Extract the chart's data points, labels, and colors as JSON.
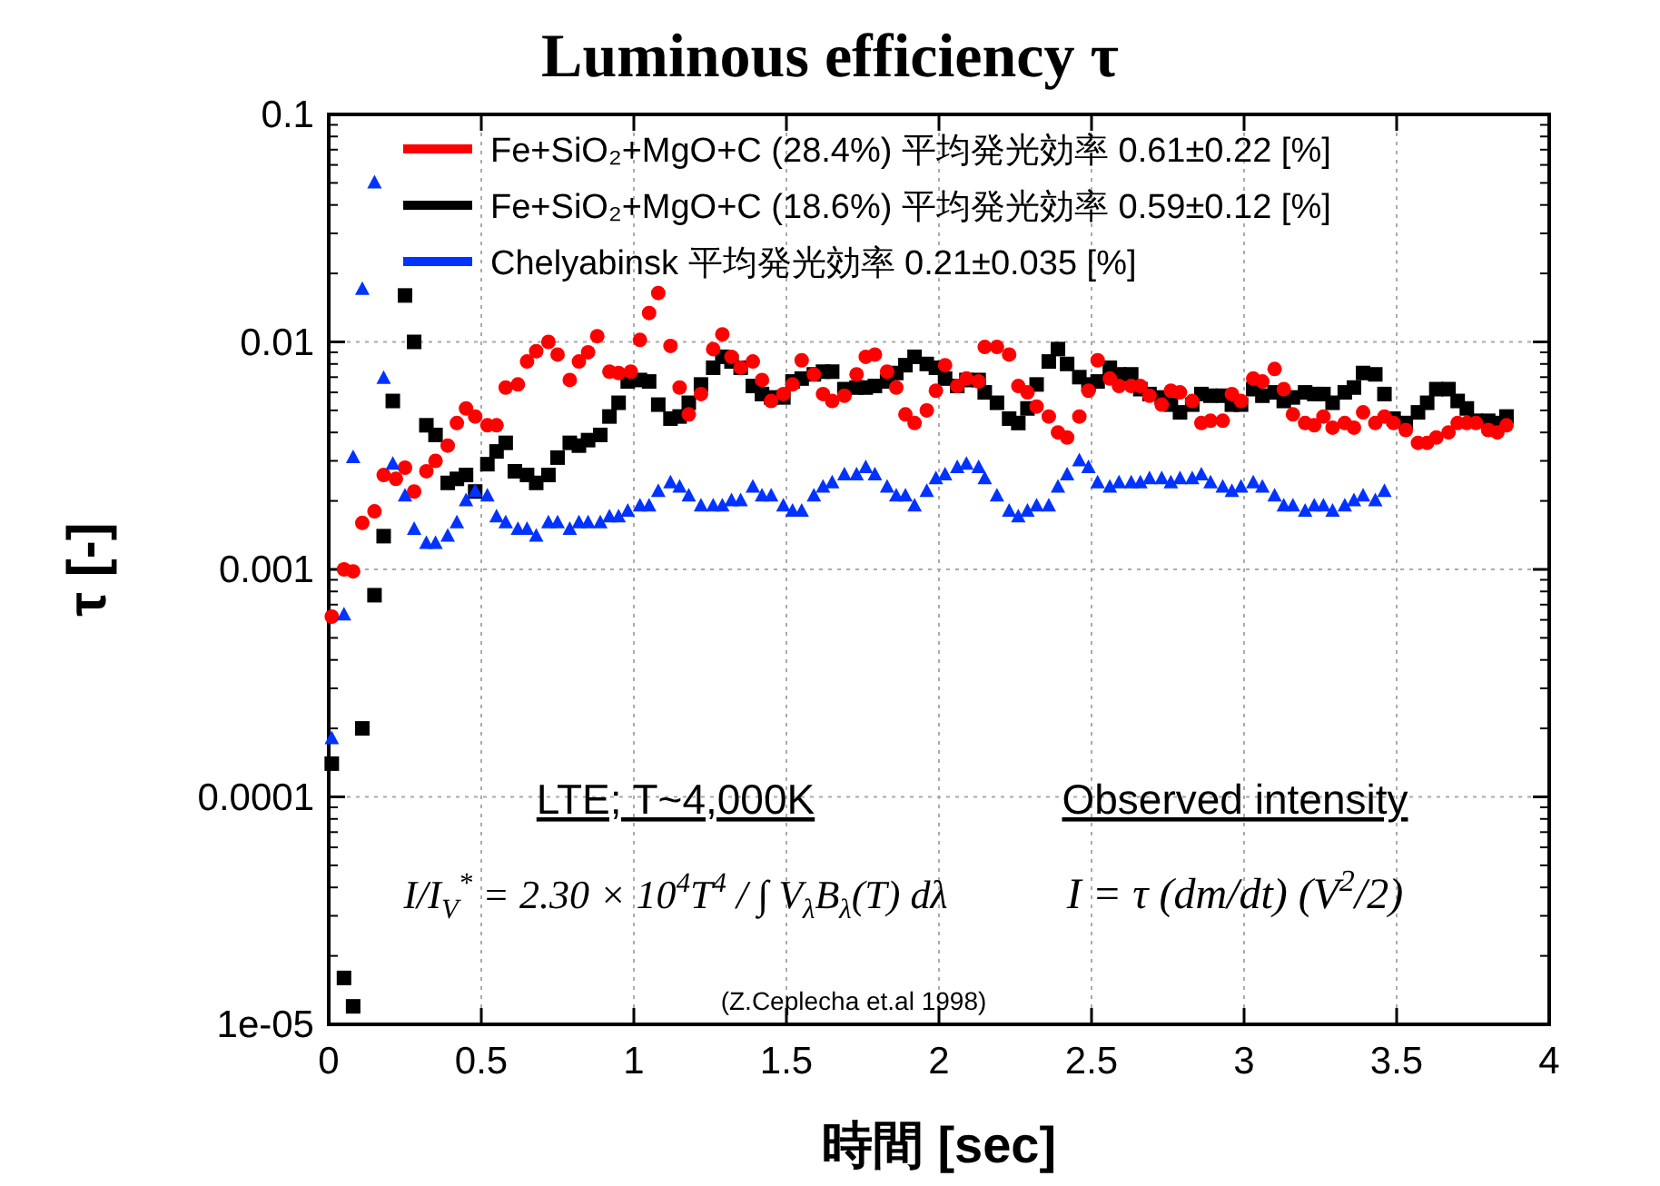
{
  "chart_data": {
    "type": "scatter",
    "title": "Luminous efficiency τ",
    "xlabel": "時間 [sec]",
    "ylabel": "τ [-]",
    "log": "y",
    "grid": true,
    "legend": "top",
    "xlim": [
      0,
      4
    ],
    "xticks": [
      0,
      0.5,
      1,
      1.5,
      2,
      2.5,
      3,
      3.5,
      4
    ],
    "ylim": [
      1e-05,
      0.1
    ],
    "yticks": [
      {
        "value": 1e-05,
        "label": "1e-05"
      },
      0.0001,
      0.001,
      0.01,
      0.1
    ],
    "annotations": [
      "LTE; T~4,000K",
      "Observed intensity",
      "I/I$_{V}$$^{*}$ = 2.30 × 10$^{4}$T$^{4}$ / ∫ V$_{λ}$B$_{λ}$(T) dλ",
      "I = τ (dm/dt) (V$^{2}$/2)",
      "(Z.Ceplecha et.al 1998)"
    ],
    "series": [
      {
        "name": "Fe+SiO₂+MgO+C (28.4%) 平均発光効率 0.61±0.22 [%]",
        "color": "#ff0000",
        "marker": "circle",
        "x": [
          0.01,
          0.05,
          0.08,
          0.11,
          0.15,
          0.18,
          0.22,
          0.25,
          0.28,
          0.32,
          0.35,
          0.39,
          0.42,
          0.45,
          0.48,
          0.52,
          0.55,
          0.58,
          0.62,
          0.65,
          0.68,
          0.72,
          0.75,
          0.79,
          0.82,
          0.85,
          0.88,
          0.92,
          0.95,
          0.99,
          1.02,
          1.05,
          1.08,
          1.12,
          1.15,
          1.18,
          1.22,
          1.26,
          1.29,
          1.32,
          1.35,
          1.39,
          1.42,
          1.45,
          1.49,
          1.52,
          1.55,
          1.59,
          1.62,
          1.65,
          1.69,
          1.73,
          1.76,
          1.79,
          1.83,
          1.86,
          1.89,
          1.92,
          1.96,
          1.99,
          2.02,
          2.06,
          2.09,
          2.13,
          2.15,
          2.19,
          2.23,
          2.26,
          2.29,
          2.32,
          2.36,
          2.39,
          2.42,
          2.46,
          2.49,
          2.52,
          2.56,
          2.59,
          2.63,
          2.66,
          2.69,
          2.73,
          2.76,
          2.79,
          2.83,
          2.86,
          2.89,
          2.93,
          2.96,
          2.99,
          3.03,
          3.06,
          3.1,
          3.13,
          3.16,
          3.2,
          3.23,
          3.26,
          3.29,
          3.33,
          3.36,
          3.39,
          3.43,
          3.46,
          3.49,
          3.53,
          3.57,
          3.6,
          3.63,
          3.67,
          3.7,
          3.73,
          3.76,
          3.8,
          3.83,
          3.86
        ],
        "values": [
          0.00062,
          0.001,
          0.00098,
          0.0016,
          0.0018,
          0.0026,
          0.0025,
          0.0028,
          0.0022,
          0.0027,
          0.003,
          0.0035,
          0.0044,
          0.0051,
          0.0047,
          0.0043,
          0.0043,
          0.0063,
          0.0065,
          0.0082,
          0.0091,
          0.01,
          0.0088,
          0.0068,
          0.0082,
          0.009,
          0.0106,
          0.0074,
          0.0073,
          0.0074,
          0.0102,
          0.0134,
          0.0164,
          0.0096,
          0.0063,
          0.0048,
          0.0059,
          0.0093,
          0.0108,
          0.0086,
          0.0077,
          0.0082,
          0.0068,
          0.0055,
          0.0059,
          0.0065,
          0.0083,
          0.0072,
          0.0059,
          0.0055,
          0.0058,
          0.0072,
          0.0086,
          0.0088,
          0.0074,
          0.0063,
          0.0048,
          0.0044,
          0.005,
          0.0061,
          0.0079,
          0.0064,
          0.0069,
          0.0067,
          0.0095,
          0.0095,
          0.0088,
          0.0064,
          0.006,
          0.0052,
          0.0047,
          0.004,
          0.0038,
          0.0047,
          0.0061,
          0.0083,
          0.0069,
          0.0064,
          0.0064,
          0.0064,
          0.0058,
          0.0053,
          0.0061,
          0.006,
          0.0055,
          0.0044,
          0.0045,
          0.0045,
          0.0059,
          0.0055,
          0.0069,
          0.0067,
          0.0076,
          0.0062,
          0.0048,
          0.0044,
          0.0043,
          0.0047,
          0.0042,
          0.0044,
          0.0042,
          0.0049,
          0.0044,
          0.0047,
          0.0044,
          0.0041,
          0.0036,
          0.0036,
          0.0038,
          0.004,
          0.0044,
          0.0044,
          0.0044,
          0.0041,
          0.004,
          0.0043
        ]
      },
      {
        "name": "Fe+SiO₂+MgO+C (18.6%) 平均発光効率 0.59±0.12 [%]",
        "color": "#000000",
        "marker": "square",
        "x": [
          0.01,
          0.05,
          0.08,
          0.11,
          0.15,
          0.18,
          0.21,
          0.25,
          0.28,
          0.32,
          0.35,
          0.39,
          0.42,
          0.45,
          0.48,
          0.52,
          0.55,
          0.58,
          0.61,
          0.65,
          0.68,
          0.72,
          0.75,
          0.79,
          0.82,
          0.85,
          0.89,
          0.92,
          0.95,
          0.98,
          1.02,
          1.05,
          1.08,
          1.12,
          1.15,
          1.18,
          1.22,
          1.26,
          1.29,
          1.32,
          1.35,
          1.39,
          1.42,
          1.45,
          1.49,
          1.52,
          1.55,
          1.59,
          1.62,
          1.65,
          1.69,
          1.73,
          1.76,
          1.79,
          1.83,
          1.86,
          1.89,
          1.92,
          1.96,
          1.99,
          2.02,
          2.06,
          2.09,
          2.13,
          2.15,
          2.19,
          2.23,
          2.26,
          2.29,
          2.32,
          2.36,
          2.39,
          2.42,
          2.46,
          2.49,
          2.52,
          2.56,
          2.59,
          2.63,
          2.66,
          2.69,
          2.73,
          2.76,
          2.79,
          2.83,
          2.86,
          2.89,
          2.93,
          2.96,
          2.99,
          3.03,
          3.06,
          3.1,
          3.13,
          3.16,
          3.2,
          3.23,
          3.26,
          3.29,
          3.33,
          3.36,
          3.39,
          3.43,
          3.46,
          3.49,
          3.53,
          3.57,
          3.6,
          3.63,
          3.67,
          3.7,
          3.73,
          3.76,
          3.8,
          3.83,
          3.86
        ],
        "values": [
          0.00014,
          1.6e-05,
          1.2e-05,
          0.0002,
          0.00077,
          0.0014,
          0.0055,
          0.016,
          0.01,
          0.0043,
          0.0039,
          0.0024,
          0.0025,
          0.0026,
          0.0022,
          0.0029,
          0.0033,
          0.0036,
          0.0027,
          0.0026,
          0.0024,
          0.0026,
          0.0031,
          0.0036,
          0.0035,
          0.0037,
          0.0039,
          0.0047,
          0.0054,
          0.0067,
          0.0068,
          0.0067,
          0.0053,
          0.0046,
          0.0047,
          0.0054,
          0.0065,
          0.0077,
          0.0086,
          0.0082,
          0.0077,
          0.0064,
          0.0059,
          0.0057,
          0.0057,
          0.0067,
          0.0069,
          0.0072,
          0.0074,
          0.0074,
          0.0062,
          0.0063,
          0.0063,
          0.0064,
          0.0067,
          0.0073,
          0.0079,
          0.0086,
          0.008,
          0.0077,
          0.0069,
          0.0064,
          0.0068,
          0.0068,
          0.006,
          0.0054,
          0.0046,
          0.0044,
          0.0051,
          0.0065,
          0.0082,
          0.0093,
          0.008,
          0.007,
          0.0065,
          0.0067,
          0.0077,
          0.0072,
          0.0072,
          0.0062,
          0.0059,
          0.0057,
          0.0053,
          0.0049,
          0.0053,
          0.0059,
          0.0058,
          0.0058,
          0.0053,
          0.0053,
          0.0062,
          0.0058,
          0.006,
          0.0055,
          0.0057,
          0.006,
          0.0059,
          0.0059,
          0.0054,
          0.006,
          0.0063,
          0.0073,
          0.0072,
          0.0059,
          0.0046,
          0.0044,
          0.0049,
          0.0054,
          0.0062,
          0.0062,
          0.0055,
          0.0051,
          0.0045,
          0.0045,
          0.0044,
          0.0047
        ]
      },
      {
        "name": "Chelyabinsk 平均発光効率 0.21±0.035 [%]",
        "color": "#0033ff",
        "marker": "triangle",
        "x": [
          0.01,
          0.05,
          0.08,
          0.11,
          0.15,
          0.18,
          0.21,
          0.25,
          0.28,
          0.32,
          0.35,
          0.39,
          0.42,
          0.45,
          0.48,
          0.52,
          0.55,
          0.58,
          0.62,
          0.65,
          0.68,
          0.72,
          0.75,
          0.79,
          0.82,
          0.85,
          0.89,
          0.92,
          0.95,
          0.98,
          1.02,
          1.05,
          1.08,
          1.12,
          1.15,
          1.18,
          1.22,
          1.26,
          1.29,
          1.32,
          1.35,
          1.39,
          1.42,
          1.45,
          1.49,
          1.52,
          1.55,
          1.59,
          1.62,
          1.65,
          1.69,
          1.73,
          1.76,
          1.79,
          1.83,
          1.86,
          1.89,
          1.92,
          1.96,
          1.99,
          2.02,
          2.06,
          2.09,
          2.13,
          2.15,
          2.19,
          2.23,
          2.26,
          2.29,
          2.32,
          2.36,
          2.39,
          2.42,
          2.46,
          2.49,
          2.52,
          2.56,
          2.59,
          2.63,
          2.66,
          2.69,
          2.73,
          2.76,
          2.79,
          2.83,
          2.86,
          2.89,
          2.93,
          2.96,
          2.99,
          3.03,
          3.06,
          3.1,
          3.13,
          3.16,
          3.2,
          3.23,
          3.26,
          3.29,
          3.33,
          3.36,
          3.39,
          3.43,
          3.46
        ],
        "values": [
          0.00018,
          0.00063,
          0.0031,
          0.017,
          0.05,
          0.0069,
          0.0029,
          0.0021,
          0.0015,
          0.0013,
          0.0013,
          0.0014,
          0.0016,
          0.002,
          0.0022,
          0.0021,
          0.0017,
          0.0016,
          0.0015,
          0.0015,
          0.0014,
          0.0016,
          0.0016,
          0.0015,
          0.0016,
          0.0016,
          0.0016,
          0.0017,
          0.0017,
          0.0018,
          0.0019,
          0.0019,
          0.0022,
          0.0024,
          0.0023,
          0.0021,
          0.0019,
          0.0019,
          0.0019,
          0.002,
          0.002,
          0.0023,
          0.0021,
          0.0021,
          0.0019,
          0.0018,
          0.0018,
          0.0021,
          0.0023,
          0.0024,
          0.0026,
          0.0026,
          0.0028,
          0.0026,
          0.0023,
          0.0021,
          0.0021,
          0.0019,
          0.0022,
          0.0025,
          0.0026,
          0.0028,
          0.0029,
          0.0028,
          0.0025,
          0.0021,
          0.0018,
          0.0017,
          0.0018,
          0.0019,
          0.0019,
          0.0023,
          0.0026,
          0.003,
          0.0028,
          0.0024,
          0.0023,
          0.0024,
          0.0024,
          0.0024,
          0.0025,
          0.0025,
          0.0024,
          0.0025,
          0.0025,
          0.0026,
          0.0024,
          0.0023,
          0.0022,
          0.0023,
          0.0024,
          0.0023,
          0.0021,
          0.0019,
          0.0019,
          0.0018,
          0.0019,
          0.0019,
          0.0018,
          0.0019,
          0.002,
          0.0021,
          0.002,
          0.0022
        ]
      }
    ]
  }
}
